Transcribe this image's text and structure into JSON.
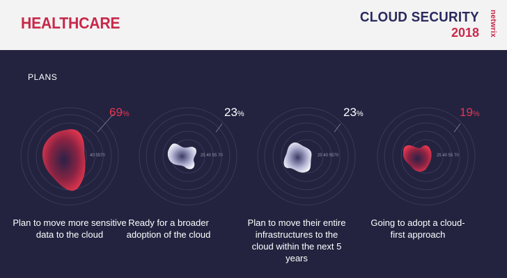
{
  "header": {
    "category": "HEALTHCARE",
    "report_title": "CLOUD SECURITY",
    "report_year": "2018",
    "logo_text": "netwrix"
  },
  "section": {
    "label": "PLANS"
  },
  "scale_labels": [
    "25",
    "40",
    "55",
    "70"
  ],
  "colors": {
    "accent": "#c8284a",
    "background": "#232340",
    "highlight": "#e8354f"
  },
  "cards": [
    {
      "value": "69",
      "unit": "%",
      "description": "Plan to move more sensitive data to the cloud",
      "scale_text": "40 5570",
      "style": "red"
    },
    {
      "value": "23",
      "unit": "%",
      "description": "Ready for a broader adoption of the cloud",
      "scale_text": "25 40 55 70",
      "style": "white"
    },
    {
      "value": "23",
      "unit": "%",
      "description": "Plan to move their entire infrastructures to the cloud within the next 5 years",
      "scale_text": "25 40 5570",
      "style": "white"
    },
    {
      "value": "19",
      "unit": "%",
      "description": "Going to adopt a cloud-first approach",
      "scale_text": "25 40 55 70",
      "style": "red"
    }
  ]
}
